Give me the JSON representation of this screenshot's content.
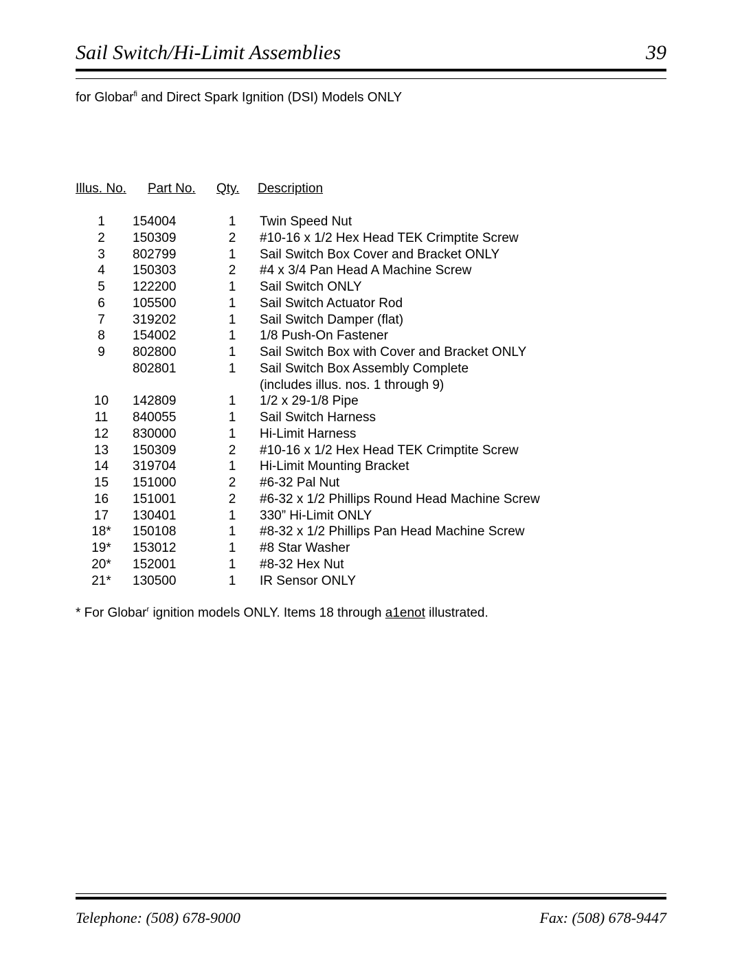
{
  "header": {
    "title": "Sail Switch/Hi-Limit Assemblies",
    "page_number": "39"
  },
  "subtitle": {
    "prefix": "for Globar",
    "sup": "fi",
    "suffix": " and Direct Spark Ignition (DSI) Models ONLY"
  },
  "columns": {
    "illus": "Illus. No.",
    "part": "Part No",
    "part_dot": ".",
    "qty": "Qty.",
    "desc": "Description"
  },
  "rows": [
    {
      "illus": "1",
      "part": "154004",
      "qty": "1",
      "desc": "Twin Speed Nut"
    },
    {
      "illus": "2",
      "part": "150309",
      "qty": "2",
      "desc": "#10-16 x 1/2  Hex Head TEK Crimptite Screw"
    },
    {
      "illus": "3",
      "part": "802799",
      "qty": "1",
      "desc": "Sail Switch Box Cover and Bracket ONLY"
    },
    {
      "illus": "4",
      "part": "150303",
      "qty": "2",
      "desc": "#4 x 3/4  Pan Head  A  Machine Screw"
    },
    {
      "illus": "5",
      "part": "122200",
      "qty": "1",
      "desc": "Sail Switch ONLY"
    },
    {
      "illus": "6",
      "part": "105500",
      "qty": "1",
      "desc": "Sail Switch Actuator Rod"
    },
    {
      "illus": "7",
      "part": "319202",
      "qty": "1",
      "desc": "Sail Switch Damper (flat)"
    },
    {
      "illus": "8",
      "part": "154002",
      "qty": "1",
      "desc": "1/8  Push-On Fastener"
    },
    {
      "illus": "9",
      "part": "802800",
      "qty": "1",
      "desc": "Sail Switch Box with Cover and Bracket ONLY"
    },
    {
      "illus": "",
      "part": "802801",
      "qty": "1",
      "desc": "Sail Switch Box Assembly Complete"
    },
    {
      "illus": "",
      "part": "",
      "qty": "",
      "desc": "(includes illus. nos. 1 through 9)"
    },
    {
      "illus": "10",
      "part": "142809",
      "qty": "1",
      "desc": "1/2  x 29-1/8  Pipe"
    },
    {
      "illus": "11",
      "part": "840055",
      "qty": "1",
      "desc": "Sail Switch Harness"
    },
    {
      "illus": "12",
      "part": "830000",
      "qty": "1",
      "desc": "Hi-Limit Harness"
    },
    {
      "illus": "13",
      "part": "150309",
      "qty": "2",
      "desc": "#10-16 x 1/2  Hex Head TEK Crimptite Screw"
    },
    {
      "illus": "14",
      "part": "319704",
      "qty": "1",
      "desc": "Hi-Limit Mounting Bracket"
    },
    {
      "illus": "15",
      "part": "151000",
      "qty": "2",
      "desc": "#6-32 Pal Nut"
    },
    {
      "illus": "16",
      "part": "151001",
      "qty": "2",
      "desc": "#6-32 x 1/2  Phillips Round Head Machine Screw"
    },
    {
      "illus": "17",
      "part": "130401",
      "qty": "1",
      "desc": "330”  Hi-Limit  ONLY"
    },
    {
      "illus": "18*",
      "part": "150108",
      "qty": "1",
      "desc": "#8-32 x 1/2  Phillips Pan Head Machine Screw"
    },
    {
      "illus": "19*",
      "part": "153012",
      "qty": "1",
      "desc": "#8 Star Washer"
    },
    {
      "illus": "20*",
      "part": "152001",
      "qty": "1",
      "desc": "#8-32 Hex Nut"
    },
    {
      "illus": "21*",
      "part": "130500",
      "qty": "1",
      "desc": "IR Sensor ONLY"
    }
  ],
  "footnote": {
    "star": "*",
    "prefix": "  For Globar",
    "sup": "r",
    "mid": " ignition models ONLY.  Items 18 through ",
    "u1": "a1e",
    "u2": "not",
    "suffix": " illustrated."
  },
  "footer": {
    "phone": "Telephone: (508) 678-9000",
    "fax": "Fax: (508) 678-9447"
  }
}
